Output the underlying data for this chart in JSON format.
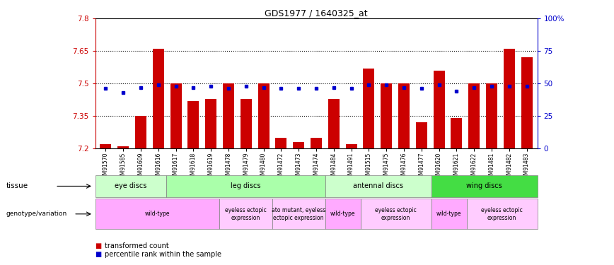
{
  "title": "GDS1977 / 1640325_at",
  "samples": [
    "GSM91570",
    "GSM91585",
    "GSM91609",
    "GSM91616",
    "GSM91617",
    "GSM91618",
    "GSM91619",
    "GSM91478",
    "GSM91479",
    "GSM91480",
    "GSM91472",
    "GSM91473",
    "GSM91474",
    "GSM91484",
    "GSM91491",
    "GSM91515",
    "GSM91475",
    "GSM91476",
    "GSM91477",
    "GSM91620",
    "GSM91621",
    "GSM91622",
    "GSM91481",
    "GSM91482",
    "GSM91483"
  ],
  "bar_values": [
    7.22,
    7.21,
    7.35,
    7.66,
    7.5,
    7.42,
    7.43,
    7.5,
    7.43,
    7.5,
    7.25,
    7.23,
    7.25,
    7.43,
    7.22,
    7.57,
    7.5,
    7.5,
    7.32,
    7.56,
    7.34,
    7.5,
    7.5,
    7.66,
    7.62
  ],
  "percentile_values": [
    0.46,
    0.43,
    0.47,
    0.49,
    0.48,
    0.47,
    0.48,
    0.46,
    0.48,
    0.47,
    0.46,
    0.46,
    0.46,
    0.47,
    0.46,
    0.49,
    0.49,
    0.47,
    0.46,
    0.49,
    0.44,
    0.47,
    0.48,
    0.48,
    0.48
  ],
  "ymin": 7.2,
  "ymax": 7.8,
  "yticks": [
    7.2,
    7.35,
    7.5,
    7.65,
    7.8
  ],
  "ytick_labels": [
    "7.2",
    "7.35",
    "7.5",
    "7.65",
    "7.8"
  ],
  "right_yticks": [
    0,
    25,
    50,
    75,
    100
  ],
  "right_ytick_labels": [
    "0",
    "25",
    "50",
    "75",
    "100%"
  ],
  "bar_color": "#cc0000",
  "percentile_color": "#0000cc",
  "tissue_groups": [
    {
      "label": "eye discs",
      "start": 0,
      "end": 4,
      "color": "#ccffcc"
    },
    {
      "label": "leg discs",
      "start": 4,
      "end": 13,
      "color": "#aaffaa"
    },
    {
      "label": "antennal discs",
      "start": 13,
      "end": 19,
      "color": "#ccffcc"
    },
    {
      "label": "wing discs",
      "start": 19,
      "end": 25,
      "color": "#44dd44"
    }
  ],
  "genotype_groups": [
    {
      "label": "wild-type",
      "start": 0,
      "end": 7,
      "color": "#ffaaff"
    },
    {
      "label": "eyeless ectopic\nexpression",
      "start": 7,
      "end": 10,
      "color": "#ffccff"
    },
    {
      "label": "ato mutant, eyeless\nectopic expression",
      "start": 10,
      "end": 13,
      "color": "#ffccff"
    },
    {
      "label": "wild-type",
      "start": 13,
      "end": 15,
      "color": "#ffaaff"
    },
    {
      "label": "eyeless ectopic\nexpression",
      "start": 15,
      "end": 19,
      "color": "#ffccff"
    },
    {
      "label": "wild-type",
      "start": 19,
      "end": 21,
      "color": "#ffaaff"
    },
    {
      "label": "eyeless ectopic\nexpression",
      "start": 21,
      "end": 25,
      "color": "#ffccff"
    }
  ]
}
